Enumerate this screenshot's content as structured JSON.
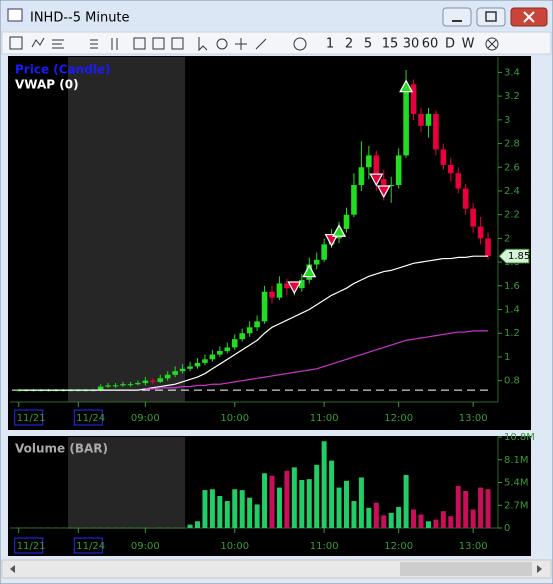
{
  "window": {
    "title": "INHD--5 Minute",
    "toolbar": [
      "1",
      "2",
      "5",
      "15",
      "30",
      "60",
      "D",
      "W"
    ]
  },
  "chart_data": [
    {
      "type": "candlestick",
      "categories": [
        "11/21",
        null,
        null,
        null,
        null,
        null,
        null,
        null,
        "11/24",
        null,
        null,
        null,
        null,
        null,
        null,
        null,
        null,
        "09:00",
        null,
        null,
        null,
        null,
        null,
        null,
        null,
        null,
        null,
        null,
        null,
        "10:00",
        null,
        null,
        null,
        null,
        null,
        null,
        null,
        null,
        null,
        null,
        null,
        "11:00",
        null,
        null,
        null,
        null,
        null,
        null,
        null,
        null,
        null,
        "12:00",
        null,
        null,
        null,
        null,
        null,
        null,
        null,
        null,
        null,
        "13:00",
        null,
        null
      ],
      "series": [
        {
          "name": "Price (Candle)",
          "color": "#1a1aff",
          "up_color": "#22dd22",
          "down_color": "#e8003c",
          "open": [
            0.72,
            0.72,
            0.72,
            0.72,
            0.72,
            0.72,
            0.72,
            0.72,
            0.72,
            0.72,
            0.72,
            0.72,
            0.75,
            0.76,
            0.76,
            0.77,
            0.77,
            0.78,
            0.8,
            0.79,
            0.82,
            0.85,
            0.88,
            0.9,
            0.92,
            0.95,
            0.98,
            1.02,
            1.05,
            1.08,
            1.15,
            1.2,
            1.25,
            1.3,
            1.55,
            1.5,
            1.62,
            1.58,
            1.58,
            1.65,
            1.78,
            1.82,
            1.95,
            2.0,
            2.08,
            2.2,
            2.45,
            2.6,
            2.7,
            2.5,
            2.45,
            2.45,
            2.7,
            3.3,
            3.05,
            2.95,
            3.05,
            2.75,
            2.62,
            2.55,
            2.42,
            2.25,
            2.1,
            2.0
          ],
          "high": [
            0.73,
            0.73,
            0.73,
            0.73,
            0.73,
            0.73,
            0.73,
            0.73,
            0.73,
            0.73,
            0.73,
            0.77,
            0.78,
            0.78,
            0.79,
            0.79,
            0.8,
            0.83,
            0.82,
            0.85,
            0.88,
            0.92,
            0.94,
            0.96,
            0.99,
            1.02,
            1.06,
            1.09,
            1.12,
            1.19,
            1.24,
            1.3,
            1.35,
            1.6,
            1.6,
            1.68,
            1.66,
            1.62,
            1.7,
            1.84,
            1.88,
            2.0,
            2.08,
            2.14,
            2.26,
            2.55,
            2.82,
            2.78,
            2.74,
            2.58,
            2.52,
            2.76,
            3.42,
            3.34,
            3.1,
            3.1,
            3.08,
            2.8,
            2.68,
            2.6,
            2.46,
            2.3,
            2.18,
            2.05
          ],
          "low": [
            0.71,
            0.71,
            0.71,
            0.71,
            0.71,
            0.71,
            0.71,
            0.71,
            0.71,
            0.71,
            0.71,
            0.71,
            0.74,
            0.74,
            0.75,
            0.75,
            0.76,
            0.76,
            0.77,
            0.78,
            0.8,
            0.83,
            0.86,
            0.88,
            0.9,
            0.93,
            0.96,
            1.0,
            1.03,
            1.06,
            1.13,
            1.17,
            1.22,
            1.28,
            1.45,
            1.48,
            1.52,
            1.52,
            1.55,
            1.62,
            1.74,
            1.8,
            1.92,
            1.96,
            2.05,
            2.18,
            2.4,
            2.5,
            2.4,
            2.32,
            2.3,
            2.42,
            2.68,
            3.0,
            2.9,
            2.85,
            2.7,
            2.58,
            2.48,
            2.38,
            2.2,
            2.05,
            1.95,
            1.82
          ],
          "close": [
            0.72,
            0.72,
            0.72,
            0.72,
            0.72,
            0.72,
            0.72,
            0.72,
            0.72,
            0.72,
            0.72,
            0.75,
            0.76,
            0.76,
            0.77,
            0.77,
            0.78,
            0.8,
            0.79,
            0.82,
            0.85,
            0.88,
            0.9,
            0.92,
            0.95,
            0.98,
            1.02,
            1.05,
            1.08,
            1.15,
            1.2,
            1.25,
            1.3,
            1.55,
            1.5,
            1.62,
            1.58,
            1.58,
            1.65,
            1.78,
            1.82,
            1.95,
            2.0,
            2.08,
            2.2,
            2.45,
            2.6,
            2.7,
            2.5,
            2.45,
            2.45,
            2.7,
            3.3,
            3.05,
            2.95,
            3.05,
            2.75,
            2.62,
            2.55,
            2.42,
            2.25,
            2.1,
            2.0,
            1.85
          ]
        },
        {
          "name": "VWAP (0)",
          "color": "#ffffff",
          "values": [
            0.72,
            0.72,
            0.72,
            0.72,
            0.72,
            0.72,
            0.72,
            0.72,
            0.72,
            0.72,
            0.72,
            0.72,
            0.72,
            0.72,
            0.72,
            0.72,
            0.72,
            0.73,
            0.74,
            0.75,
            0.76,
            0.77,
            0.79,
            0.81,
            0.83,
            0.86,
            0.9,
            0.94,
            0.98,
            1.02,
            1.06,
            1.1,
            1.14,
            1.2,
            1.25,
            1.28,
            1.31,
            1.34,
            1.37,
            1.4,
            1.44,
            1.48,
            1.52,
            1.55,
            1.58,
            1.62,
            1.65,
            1.68,
            1.7,
            1.72,
            1.73,
            1.75,
            1.77,
            1.79,
            1.8,
            1.81,
            1.82,
            1.83,
            1.83,
            1.84,
            1.84,
            1.85,
            1.85,
            1.85
          ]
        },
        {
          "color": "#cc33cc",
          "values": [
            null,
            null,
            null,
            null,
            null,
            null,
            null,
            null,
            null,
            null,
            null,
            null,
            null,
            null,
            null,
            null,
            null,
            0.73,
            0.73,
            0.74,
            0.74,
            0.74,
            0.75,
            0.75,
            0.76,
            0.76,
            0.77,
            0.77,
            0.78,
            0.79,
            0.8,
            0.81,
            0.82,
            0.83,
            0.84,
            0.85,
            0.86,
            0.87,
            0.88,
            0.89,
            0.9,
            0.92,
            0.94,
            0.96,
            0.98,
            1.0,
            1.02,
            1.04,
            1.06,
            1.08,
            1.1,
            1.12,
            1.14,
            1.15,
            1.16,
            1.17,
            1.18,
            1.19,
            1.2,
            1.21,
            1.21,
            1.22,
            1.22,
            1.22
          ]
        }
      ],
      "reference_line": 0.72,
      "markers": [
        {
          "index": 37,
          "value": 1.59,
          "kind": "sell"
        },
        {
          "index": 39,
          "value": 1.72,
          "kind": "buy"
        },
        {
          "index": 42,
          "value": 1.99,
          "kind": "sell"
        },
        {
          "index": 43,
          "value": 2.06,
          "kind": "buy"
        },
        {
          "index": 48,
          "value": 2.5,
          "kind": "sell"
        },
        {
          "index": 49,
          "value": 2.4,
          "kind": "sell"
        },
        {
          "index": 52,
          "value": 3.28,
          "kind": "buy"
        }
      ],
      "ylim": [
        0.62,
        3.53
      ],
      "yticks": [
        0.8,
        1,
        1.2,
        1.4,
        1.6,
        1.8,
        2,
        2.2,
        2.4,
        2.6,
        2.8,
        3,
        3.2,
        3.4
      ]
    },
    {
      "type": "bar",
      "title": "Volume (BAR)",
      "values": [
        0.02,
        0.02,
        0.02,
        0.02,
        0.02,
        0.02,
        0.02,
        0.02,
        0.02,
        0.02,
        0.02,
        0.02,
        0.02,
        0.02,
        0.02,
        0.02,
        0.02,
        0.02,
        0.02,
        0.02,
        0.02,
        0.02,
        0.02,
        0.4,
        0.8,
        4.5,
        4.6,
        3.8,
        3.2,
        4.6,
        4.5,
        3.6,
        2.8,
        6.5,
        6.2,
        4.8,
        6.8,
        7.2,
        5.7,
        5.8,
        7.5,
        10.3,
        8.0,
        4.8,
        5.6,
        3.2,
        6.0,
        2.4,
        3.0,
        1.5,
        1.8,
        2.5,
        6.3,
        2.2,
        1.6,
        0.8,
        1.0,
        2.0,
        1.4,
        5.0,
        4.4,
        2.2,
        4.8,
        4.6
      ],
      "up_color": "#22cc66",
      "down_color": "#c8105a",
      "ylim": [
        0,
        11.4
      ],
      "yticks": [
        0,
        {
          "value": 2.7,
          "label": "2.7M"
        },
        {
          "value": 5.4,
          "label": "5.4M"
        },
        {
          "value": 8.1,
          "label": "8.1M"
        },
        {
          "value": 10.8,
          "label": "10.8M"
        }
      ]
    }
  ]
}
